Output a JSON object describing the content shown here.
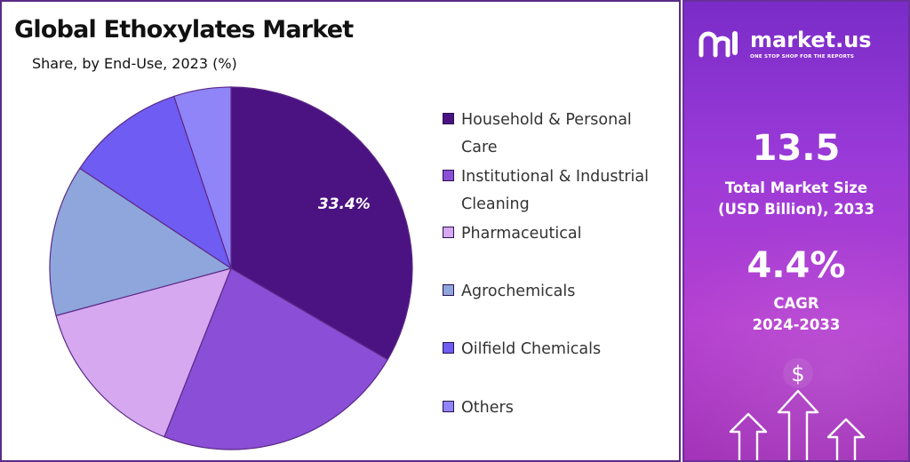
{
  "chart_panel": {
    "title": "Global Ethoxylates Market",
    "subtitle": "Share, by End-Use, 2023 (%)"
  },
  "chart_data": {
    "type": "pie",
    "title": "Global Ethoxylates Market",
    "subtitle": "Share, by End-Use, 2023 (%)",
    "categories": [
      "Household & Personal Care",
      "Institutional & Industrial Cleaning",
      "Pharmaceutical",
      "Agrochemicals",
      "Oilfield Chemicals",
      "Others"
    ],
    "values": [
      33.4,
      22.6,
      14.8,
      13.5,
      10.6,
      5.1
    ],
    "data_labels": [
      "33.4%",
      "",
      "",
      "",
      "",
      ""
    ],
    "colors": [
      "#4b1282",
      "#8a4fd6",
      "#d5a8f0",
      "#8fa6dc",
      "#6f5cf2",
      "#8f85f8"
    ],
    "start_angle": "12 o'clock",
    "direction": "clockwise",
    "legend_position": "right"
  },
  "legend": {
    "items": [
      {
        "lines": [
          "Household & Personal",
          "Care"
        ]
      },
      {
        "lines": [
          "Institutional & Industrial",
          "Cleaning"
        ]
      },
      {
        "lines": [
          "Pharmaceutical"
        ]
      },
      {
        "lines": [
          "Agrochemicals"
        ]
      },
      {
        "lines": [
          "Oilfield Chemicals"
        ]
      },
      {
        "lines": [
          "Others"
        ]
      }
    ]
  },
  "side_panel": {
    "brand_name": "market.us",
    "brand_tagline": "ONE STOP SHOP FOR THE REPORTS",
    "market_size_value": "13.5",
    "market_size_label_line1": "Total Market Size",
    "market_size_label_line2": "(USD Billion), 2033",
    "cagr_value": "4.4%",
    "cagr_label_line1": "CAGR",
    "cagr_label_line2": "2024-2033",
    "dollar_symbol": "$",
    "background_colors": [
      "#7a2cc8",
      "#b53fd0"
    ]
  }
}
